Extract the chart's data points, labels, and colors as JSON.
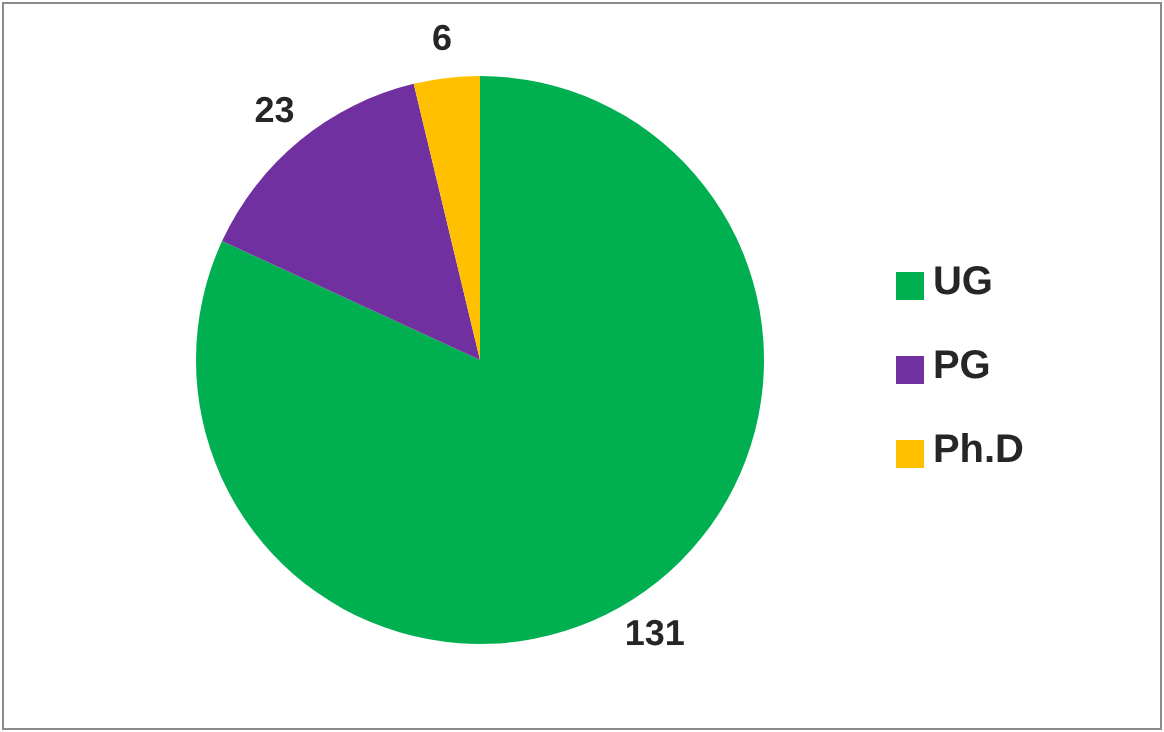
{
  "chart_data": {
    "type": "pie",
    "categories": [
      "UG",
      "PG",
      "Ph.D"
    ],
    "values": [
      131,
      23,
      6
    ],
    "colors": [
      "#00b050",
      "#7030a0",
      "#ffc000"
    ],
    "data_labels": true,
    "legend": "right"
  }
}
